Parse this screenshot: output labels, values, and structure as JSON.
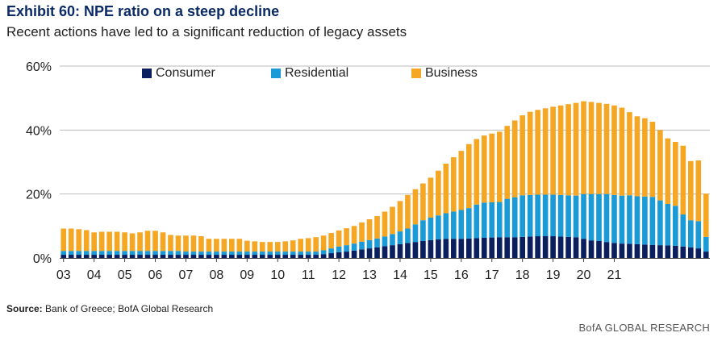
{
  "header": {
    "title": "Exhibit 60: NPE ratio on a steep decline",
    "subtitle": "Recent actions have led to a significant reduction of legacy assets"
  },
  "footer": {
    "source_label": "Source:",
    "source_text": "Bank of Greece; BofA Global Research",
    "brand": "BofA GLOBAL RESEARCH"
  },
  "colors": {
    "consumer": "#0b1f5e",
    "residential": "#1a9ad6",
    "business": "#f5a623",
    "grid": "#bbbbbb",
    "axis": "#444444"
  },
  "chart_data": {
    "type": "bar",
    "stacked": true,
    "title": "Exhibit 60: NPE ratio on a steep decline",
    "xlabel": "",
    "ylabel": "",
    "ylim": [
      0,
      60
    ],
    "yticks": [
      "0%",
      "20%",
      "40%",
      "60%"
    ],
    "ytick_values": [
      0,
      20,
      40,
      60
    ],
    "grid": true,
    "legend_position": "top",
    "xtick_labels": [
      "03",
      "04",
      "05",
      "06",
      "07",
      "08",
      "09",
      "10",
      "11",
      "12",
      "13",
      "14",
      "15",
      "16",
      "17",
      "18",
      "19",
      "20",
      "21"
    ],
    "xtick_start_index": 0,
    "xtick_every": 4,
    "series": [
      {
        "name": "Consumer",
        "color_key": "consumer",
        "values": [
          1.0,
          1.0,
          1.0,
          1.0,
          1.0,
          1.0,
          1.0,
          1.0,
          1.0,
          1.0,
          1.0,
          1.0,
          1.0,
          1.0,
          1.0,
          1.0,
          1.0,
          1.0,
          1.0,
          1.0,
          1.0,
          1.0,
          1.0,
          1.0,
          1.0,
          1.0,
          1.0,
          1.0,
          1.0,
          1.0,
          1.0,
          1.0,
          1.0,
          1.0,
          1.2,
          1.5,
          1.8,
          2.0,
          2.3,
          2.7,
          3.0,
          3.3,
          3.7,
          4.0,
          4.3,
          4.7,
          5.0,
          5.3,
          5.6,
          5.8,
          6.0,
          6.0,
          6.0,
          6.1,
          6.2,
          6.3,
          6.4,
          6.5,
          6.5,
          6.5,
          6.6,
          6.7,
          6.8,
          6.8,
          6.8,
          6.7,
          6.6,
          6.5,
          6.0,
          5.5,
          5.3,
          5.0,
          4.7,
          4.5,
          4.4,
          4.3,
          4.2,
          4.1,
          4.0,
          3.9,
          3.8,
          3.6,
          3.3,
          3.0,
          2.0
        ]
      },
      {
        "name": "Residential",
        "color_key": "residential",
        "values": [
          1.2,
          1.2,
          1.2,
          1.2,
          1.2,
          1.2,
          1.2,
          1.2,
          1.2,
          1.2,
          1.2,
          1.2,
          1.2,
          1.2,
          1.2,
          1.2,
          1.0,
          1.0,
          1.0,
          1.0,
          1.0,
          1.0,
          1.0,
          1.0,
          1.0,
          1.0,
          1.0,
          1.0,
          1.0,
          1.0,
          1.0,
          1.0,
          1.0,
          1.0,
          1.2,
          1.5,
          1.8,
          2.0,
          2.2,
          2.4,
          2.6,
          2.8,
          3.0,
          3.5,
          4.0,
          4.5,
          5.5,
          6.5,
          7.0,
          7.5,
          8.0,
          8.5,
          9.0,
          9.5,
          10.5,
          11.0,
          11.0,
          11.0,
          12.0,
          12.5,
          13.0,
          13.0,
          13.0,
          13.0,
          13.0,
          13.0,
          13.0,
          13.0,
          14.0,
          14.5,
          14.7,
          15.0,
          15.0,
          15.0,
          15.2,
          15.0,
          15.0,
          15.0,
          14.0,
          13.0,
          12.5,
          10.0,
          8.5,
          8.5,
          4.6
        ]
      },
      {
        "name": "Business",
        "color_key": "business",
        "values": [
          7.0,
          7.0,
          6.8,
          6.5,
          5.8,
          6.0,
          6.0,
          6.0,
          5.8,
          5.5,
          5.8,
          6.3,
          6.3,
          5.8,
          5.0,
          4.8,
          5.0,
          5.0,
          4.8,
          4.0,
          4.0,
          4.0,
          4.0,
          4.0,
          3.4,
          3.2,
          3.0,
          3.0,
          3.0,
          3.2,
          3.5,
          4.0,
          4.2,
          4.5,
          4.6,
          4.8,
          5.0,
          5.3,
          5.5,
          6.0,
          6.5,
          7.0,
          7.8,
          8.5,
          9.5,
          10.5,
          11.0,
          11.5,
          12.5,
          14.0,
          15.5,
          17.0,
          18.5,
          20.0,
          20.5,
          21.0,
          21.5,
          22.0,
          22.8,
          24.0,
          25.0,
          26.0,
          26.5,
          27.0,
          27.5,
          28.0,
          28.5,
          29.0,
          29.0,
          28.8,
          28.5,
          28.2,
          28.0,
          27.5,
          26.0,
          25.0,
          24.5,
          23.5,
          22.0,
          20.5,
          20.0,
          21.5,
          18.5,
          19.0,
          13.5
        ]
      }
    ]
  }
}
